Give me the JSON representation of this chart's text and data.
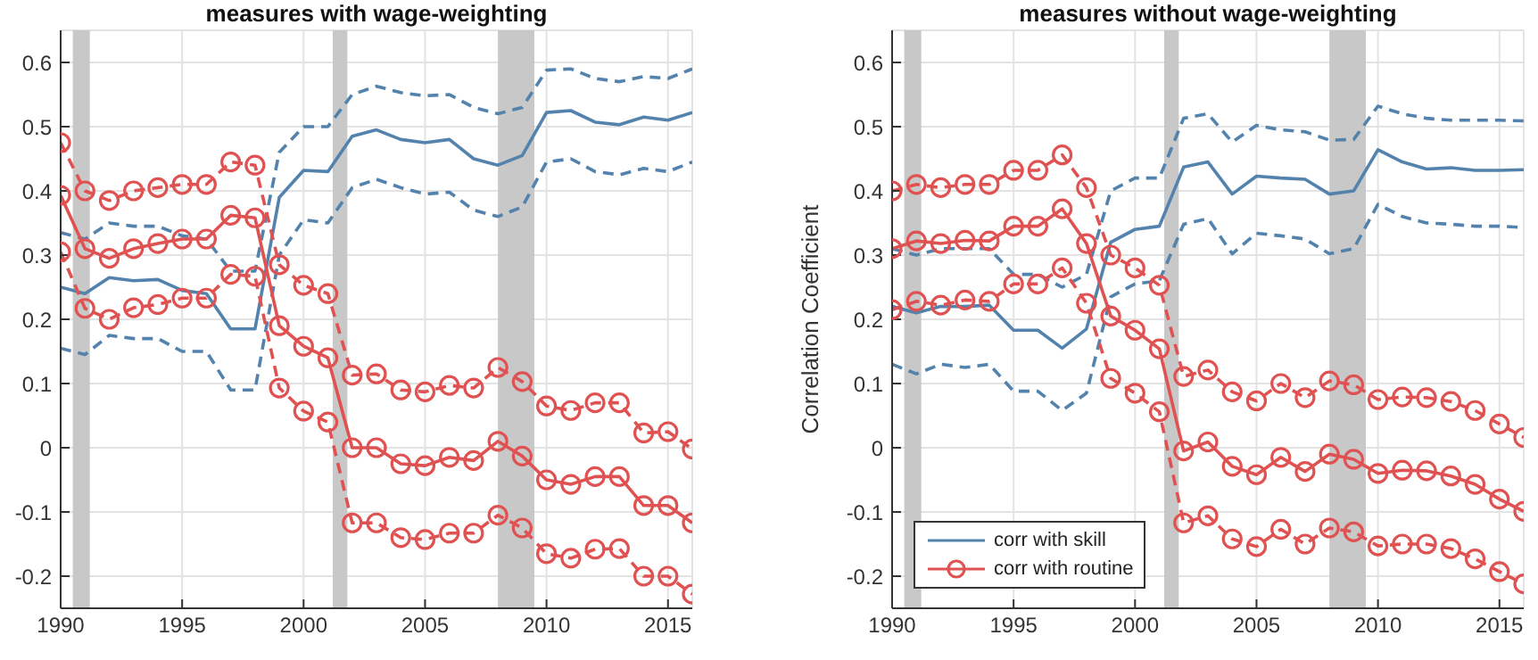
{
  "chart_data": [
    {
      "type": "line",
      "title": "measures with wage-weighting",
      "x": [
        1990,
        1991,
        1992,
        1993,
        1994,
        1995,
        1996,
        1997,
        1998,
        1999,
        2000,
        2001,
        2002,
        2003,
        2004,
        2005,
        2006,
        2007,
        2008,
        2009,
        2010,
        2011,
        2012,
        2013,
        2014,
        2015,
        2016
      ],
      "xlim": [
        1990,
        2016
      ],
      "ylim": [
        -0.25,
        0.65
      ],
      "xticks": [
        1990,
        1995,
        2000,
        2005,
        2010,
        2015
      ],
      "yticks": [
        -0.2,
        -0.1,
        0,
        0.1,
        0.2,
        0.3,
        0.4,
        0.5,
        0.6
      ],
      "grid": true,
      "legend": false,
      "bands": [
        {
          "axis": "x",
          "from": 1990.5,
          "to": 1991.2,
          "color": "#c8c8c8"
        },
        {
          "axis": "x",
          "from": 2001.2,
          "to": 2001.8,
          "color": "#c8c8c8"
        },
        {
          "axis": "x",
          "from": 2008.0,
          "to": 2009.5,
          "color": "#c8c8c8"
        }
      ],
      "series": [
        {
          "color": "#5383ad",
          "line_style": "solid",
          "marker": "none",
          "values": [
            0.25,
            0.24,
            0.265,
            0.26,
            0.262,
            0.245,
            0.24,
            0.185,
            0.185,
            0.39,
            0.432,
            0.43,
            0.485,
            0.495,
            0.48,
            0.475,
            0.48,
            0.45,
            0.44,
            0.455,
            0.522,
            0.525,
            0.507,
            0.503,
            0.515,
            0.51,
            0.522
          ]
        },
        {
          "color": "#5383ad",
          "line_style": "dashed",
          "marker": "none",
          "values": [
            0.335,
            0.325,
            0.35,
            0.345,
            0.345,
            0.33,
            0.325,
            0.275,
            0.275,
            0.46,
            0.5,
            0.5,
            0.55,
            0.563,
            0.553,
            0.548,
            0.55,
            0.53,
            0.52,
            0.53,
            0.588,
            0.59,
            0.575,
            0.57,
            0.578,
            0.575,
            0.59
          ]
        },
        {
          "color": "#5383ad",
          "line_style": "dashed",
          "marker": "none",
          "values": [
            0.155,
            0.145,
            0.175,
            0.17,
            0.17,
            0.15,
            0.15,
            0.09,
            0.09,
            0.3,
            0.355,
            0.35,
            0.405,
            0.418,
            0.405,
            0.395,
            0.398,
            0.37,
            0.36,
            0.375,
            0.445,
            0.45,
            0.43,
            0.425,
            0.435,
            0.43,
            0.445
          ]
        },
        {
          "color": "#e05252",
          "line_style": "solid",
          "marker": "circle",
          "values": [
            0.393,
            0.31,
            0.295,
            0.31,
            0.318,
            0.325,
            0.325,
            0.362,
            0.358,
            0.19,
            0.158,
            0.14,
            0,
            0,
            -0.025,
            -0.028,
            -0.015,
            -0.02,
            0.01,
            -0.013,
            -0.05,
            -0.057,
            -0.045,
            -0.045,
            -0.09,
            -0.09,
            -0.117
          ]
        },
        {
          "color": "#e05252",
          "line_style": "dashed",
          "marker": "circle",
          "values": [
            0.475,
            0.4,
            0.385,
            0.4,
            0.405,
            0.41,
            0.41,
            0.445,
            0.44,
            0.285,
            0.253,
            0.24,
            0.113,
            0.115,
            0.09,
            0.087,
            0.097,
            0.093,
            0.125,
            0.103,
            0.065,
            0.058,
            0.07,
            0.07,
            0.023,
            0.025,
            -0.002
          ]
        },
        {
          "color": "#e05252",
          "line_style": "dashed",
          "marker": "circle",
          "values": [
            0.305,
            0.217,
            0.2,
            0.218,
            0.223,
            0.233,
            0.233,
            0.27,
            0.267,
            0.093,
            0.057,
            0.04,
            -0.117,
            -0.117,
            -0.14,
            -0.143,
            -0.133,
            -0.133,
            -0.105,
            -0.125,
            -0.165,
            -0.172,
            -0.158,
            -0.157,
            -0.2,
            -0.2,
            -0.228
          ]
        }
      ]
    },
    {
      "type": "line",
      "title": "measures without wage-weighting",
      "ylabel": "Correlation Coefficient",
      "x": [
        1990,
        1991,
        1992,
        1993,
        1994,
        1995,
        1996,
        1997,
        1998,
        1999,
        2000,
        2001,
        2002,
        2003,
        2004,
        2005,
        2006,
        2007,
        2008,
        2009,
        2010,
        2011,
        2012,
        2013,
        2014,
        2015,
        2016
      ],
      "xlim": [
        1990,
        2016
      ],
      "ylim": [
        -0.25,
        0.65
      ],
      "xticks": [
        1990,
        1995,
        2000,
        2005,
        2010,
        2015
      ],
      "yticks": [
        -0.2,
        -0.1,
        0,
        0.1,
        0.2,
        0.3,
        0.4,
        0.5,
        0.6
      ],
      "grid": true,
      "legend": "bottom left",
      "bands": [
        {
          "axis": "x",
          "from": 1990.5,
          "to": 1991.2,
          "color": "#c8c8c8"
        },
        {
          "axis": "x",
          "from": 2001.2,
          "to": 2001.8,
          "color": "#c8c8c8"
        },
        {
          "axis": "x",
          "from": 2008.0,
          "to": 2009.5,
          "color": "#c8c8c8"
        }
      ],
      "series": [
        {
          "name": "corr with skill",
          "color": "#5383ad",
          "line_style": "solid",
          "marker": "none",
          "values": [
            0.22,
            0.21,
            0.22,
            0.22,
            0.222,
            0.183,
            0.183,
            0.155,
            0.185,
            0.32,
            0.34,
            0.345,
            0.437,
            0.445,
            0.395,
            0.423,
            0.42,
            0.418,
            0.395,
            0.4,
            0.464,
            0.445,
            0.434,
            0.436,
            0.432,
            0.432,
            0.433
          ]
        },
        {
          "color": "#5383ad",
          "line_style": "dashed",
          "marker": "none",
          "values": [
            0.31,
            0.3,
            0.31,
            0.31,
            0.31,
            0.27,
            0.27,
            0.25,
            0.27,
            0.4,
            0.42,
            0.42,
            0.513,
            0.52,
            0.476,
            0.502,
            0.495,
            0.492,
            0.479,
            0.48,
            0.532,
            0.52,
            0.513,
            0.51,
            0.51,
            0.51,
            0.509
          ]
        },
        {
          "color": "#5383ad",
          "line_style": "dashed",
          "marker": "none",
          "values": [
            0.13,
            0.115,
            0.13,
            0.125,
            0.13,
            0.088,
            0.088,
            0.058,
            0.085,
            0.235,
            0.255,
            0.26,
            0.348,
            0.357,
            0.302,
            0.334,
            0.33,
            0.325,
            0.302,
            0.31,
            0.379,
            0.36,
            0.35,
            0.348,
            0.345,
            0.345,
            0.343
          ]
        },
        {
          "name": "corr with routine",
          "color": "#e05252",
          "line_style": "solid",
          "marker": "circle",
          "values": [
            0.31,
            0.322,
            0.318,
            0.323,
            0.322,
            0.345,
            0.345,
            0.372,
            0.318,
            0.205,
            0.183,
            0.154,
            -0.005,
            0.009,
            -0.029,
            -0.042,
            -0.015,
            -0.037,
            -0.01,
            -0.018,
            -0.04,
            -0.035,
            -0.036,
            -0.044,
            -0.057,
            -0.08,
            -0.099
          ]
        },
        {
          "color": "#e05252",
          "line_style": "dashed",
          "marker": "circle",
          "values": [
            0.4,
            0.41,
            0.405,
            0.41,
            0.41,
            0.432,
            0.432,
            0.456,
            0.405,
            0.3,
            0.28,
            0.253,
            0.111,
            0.121,
            0.087,
            0.073,
            0.1,
            0.078,
            0.104,
            0.098,
            0.075,
            0.079,
            0.078,
            0.072,
            0.058,
            0.037,
            0.016
          ]
        },
        {
          "color": "#e05252",
          "line_style": "dashed",
          "marker": "circle",
          "values": [
            0.215,
            0.228,
            0.222,
            0.23,
            0.228,
            0.255,
            0.255,
            0.28,
            0.225,
            0.108,
            0.085,
            0.056,
            -0.117,
            -0.106,
            -0.142,
            -0.154,
            -0.127,
            -0.15,
            -0.125,
            -0.131,
            -0.153,
            -0.15,
            -0.15,
            -0.157,
            -0.173,
            -0.193,
            -0.212
          ]
        }
      ]
    }
  ]
}
